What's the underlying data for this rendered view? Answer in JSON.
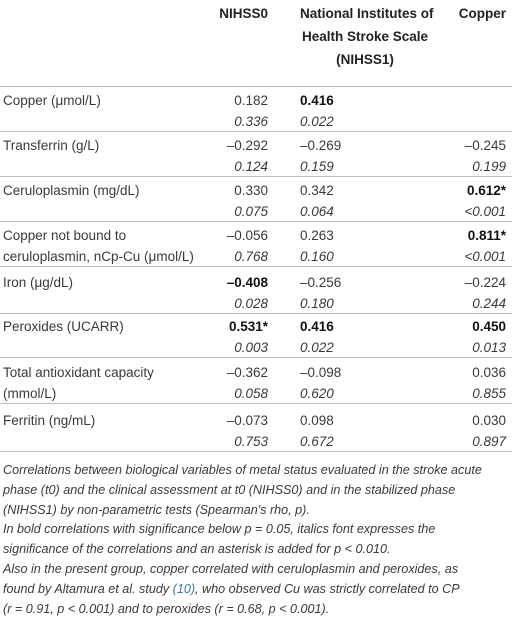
{
  "header": {
    "label": null,
    "columns": [
      [
        "NIHSS0"
      ],
      [
        "National Institutes of",
        "Health Stroke Scale",
        "(NIHSS1)"
      ],
      [
        "Copper"
      ]
    ]
  },
  "table": {
    "rows": [
      {
        "label": [
          "Copper (μmol/L)"
        ],
        "cells": [
          {
            "r": "0.182",
            "p": "0.336",
            "bold": false
          },
          {
            "r": "0.416",
            "p": "0.022",
            "bold": true
          },
          null
        ]
      },
      {
        "label": [
          "Transferrin (g/L)"
        ],
        "cells": [
          {
            "r": "–0.292",
            "p": "0.124",
            "bold": false
          },
          {
            "r": "–0.269",
            "p": "0.159",
            "bold": false
          },
          {
            "r": "–0.245",
            "p": "0.199",
            "bold": false
          }
        ]
      },
      {
        "label": [
          "Ceruloplasmin (mg/dL)"
        ],
        "cells": [
          {
            "r": "0.330",
            "p": "0.075",
            "bold": false
          },
          {
            "r": "0.342",
            "p": "0.064",
            "bold": false
          },
          {
            "r": "0.612*",
            "p": "<0.001",
            "bold": true
          }
        ]
      },
      {
        "label": [
          "Copper not bound to",
          "ceruloplasmin, nCp-Cu (μmol/L)"
        ],
        "cells": [
          {
            "r": "–0.056",
            "p": "0.768",
            "bold": false
          },
          {
            "r": "0.263",
            "p": "0.160",
            "bold": false
          },
          {
            "r": "0.811*",
            "p": "<0.001",
            "bold": true
          }
        ]
      },
      {
        "label": [
          "Iron (μg/dL)"
        ],
        "cells": [
          {
            "r": "–0.408",
            "p": "0.028",
            "bold": true
          },
          {
            "r": "–0.256",
            "p": "0.180",
            "bold": false
          },
          {
            "r": "–0.224",
            "p": "0.244",
            "bold": false
          }
        ]
      },
      {
        "label": [
          "Peroxides (UCARR)"
        ],
        "cells": [
          {
            "r": "0.531*",
            "p": "0.003",
            "bold": true
          },
          {
            "r": "0.416",
            "p": "0.022",
            "bold": true
          },
          {
            "r": "0.450",
            "p": "0.013",
            "bold": true
          }
        ]
      },
      {
        "label": [
          "Total antioxidant capacity",
          "(mmol/L)"
        ],
        "cells": [
          {
            "r": "–0.362",
            "p": "0.058",
            "bold": false
          },
          {
            "r": "–0.098",
            "p": "0.620",
            "bold": false
          },
          {
            "r": "0.036",
            "p": "0.855",
            "bold": false
          }
        ]
      },
      {
        "label": [
          "Ferritin (ng/mL)"
        ],
        "cells": [
          {
            "r": "–0.073",
            "p": "0.753",
            "bold": false
          },
          {
            "r": "0.098",
            "p": "0.672",
            "bold": false
          },
          {
            "r": "0.030",
            "p": "0.897",
            "bold": false
          }
        ]
      }
    ]
  },
  "footnote": {
    "lines": [
      [
        "Correlations between biological variables of metal status evaluated in the stroke acute"
      ],
      [
        "phase (t0) and the clinical assessment at t0 (NIHSS0) and in the stabilized phase"
      ],
      [
        "(NIHSS1) by non-parametric tests (Spearman's rho, p)."
      ],
      [
        "In bold correlations with significance below p = 0.05, italics font expresses the"
      ],
      [
        "significance of the correlations and an asterisk is added for p < 0.010."
      ],
      [
        "Also in the present group, copper correlated with ceruloplasmin and peroxides, as"
      ],
      [
        "found by Altamura et al. study ",
        "(10)",
        ", who observed Cu was strictly correlated to CP"
      ],
      [
        "(r = 0.91, p < 0.001) and to peroxides (r = 0.68, p < 0.001)."
      ]
    ],
    "link": [
      6,
      1
    ]
  }
}
